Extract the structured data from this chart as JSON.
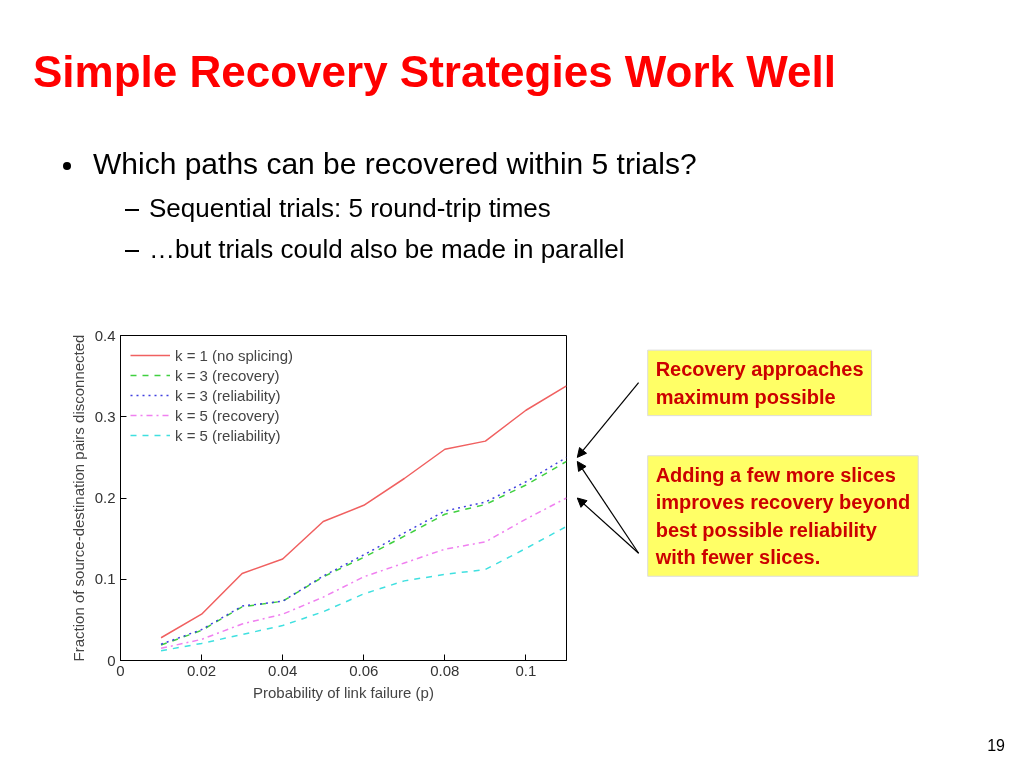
{
  "chart_data": {
    "type": "line",
    "title": "Simple Recovery Strategies Work Well",
    "subtitle": "Which paths can be recovered within 5 trials?",
    "xlabel": "Probability of link failure (p)",
    "ylabel": "Fraction of source-destination pairs disconnected",
    "x": [
      0.01,
      0.02,
      0.03,
      0.04,
      0.05,
      0.06,
      0.07,
      0.08,
      0.09,
      0.1,
      0.11
    ],
    "series": [
      {
        "name": "k = 1 (no splicing)",
        "color": "#f06060",
        "line_style": "solid",
        "values": [
          0.028,
          0.057,
          0.107,
          0.125,
          0.171,
          0.191,
          0.224,
          0.26,
          0.27,
          0.308,
          0.338
        ]
      },
      {
        "name": "k = 3 (recovery)",
        "color": "#40d040",
        "line_style": "dashed",
        "values": [
          0.019,
          0.037,
          0.066,
          0.073,
          0.103,
          0.127,
          0.153,
          0.18,
          0.192,
          0.216,
          0.245
        ]
      },
      {
        "name": "k = 3 (reliability)",
        "color": "#4040e0",
        "line_style": "dotted",
        "values": [
          0.02,
          0.038,
          0.067,
          0.073,
          0.104,
          0.13,
          0.157,
          0.184,
          0.195,
          0.22,
          0.25
        ]
      },
      {
        "name": "k = 5 (recovery)",
        "color": "#f080f0",
        "line_style": "dashdot",
        "values": [
          0.015,
          0.026,
          0.045,
          0.057,
          0.078,
          0.103,
          0.12,
          0.137,
          0.146,
          0.174,
          0.2
        ]
      },
      {
        "name": "k = 5 (reliability)",
        "color": "#40e0e0",
        "line_style": "dashed",
        "values": [
          0.012,
          0.021,
          0.032,
          0.043,
          0.06,
          0.082,
          0.098,
          0.106,
          0.112,
          0.138,
          0.165
        ]
      }
    ],
    "xlim": [
      0,
      0.11
    ],
    "ylim": [
      0,
      0.4
    ],
    "xticks": [
      0,
      0.02,
      0.04,
      0.06,
      0.08,
      0.1
    ],
    "yticks": [
      0,
      0.1,
      0.2,
      0.3,
      0.4
    ],
    "grid": false,
    "legend": "top left",
    "marker": "none",
    "annotations": [
      "Sequential trials: 5 round-trip times",
      "…but trials could also be made in parallel",
      "Recovery approaches\nmaximum possible",
      "Adding a few more slices\nimproves recovery beyond\nbest possible reliability\nwith fewer slices.",
      "19"
    ]
  }
}
